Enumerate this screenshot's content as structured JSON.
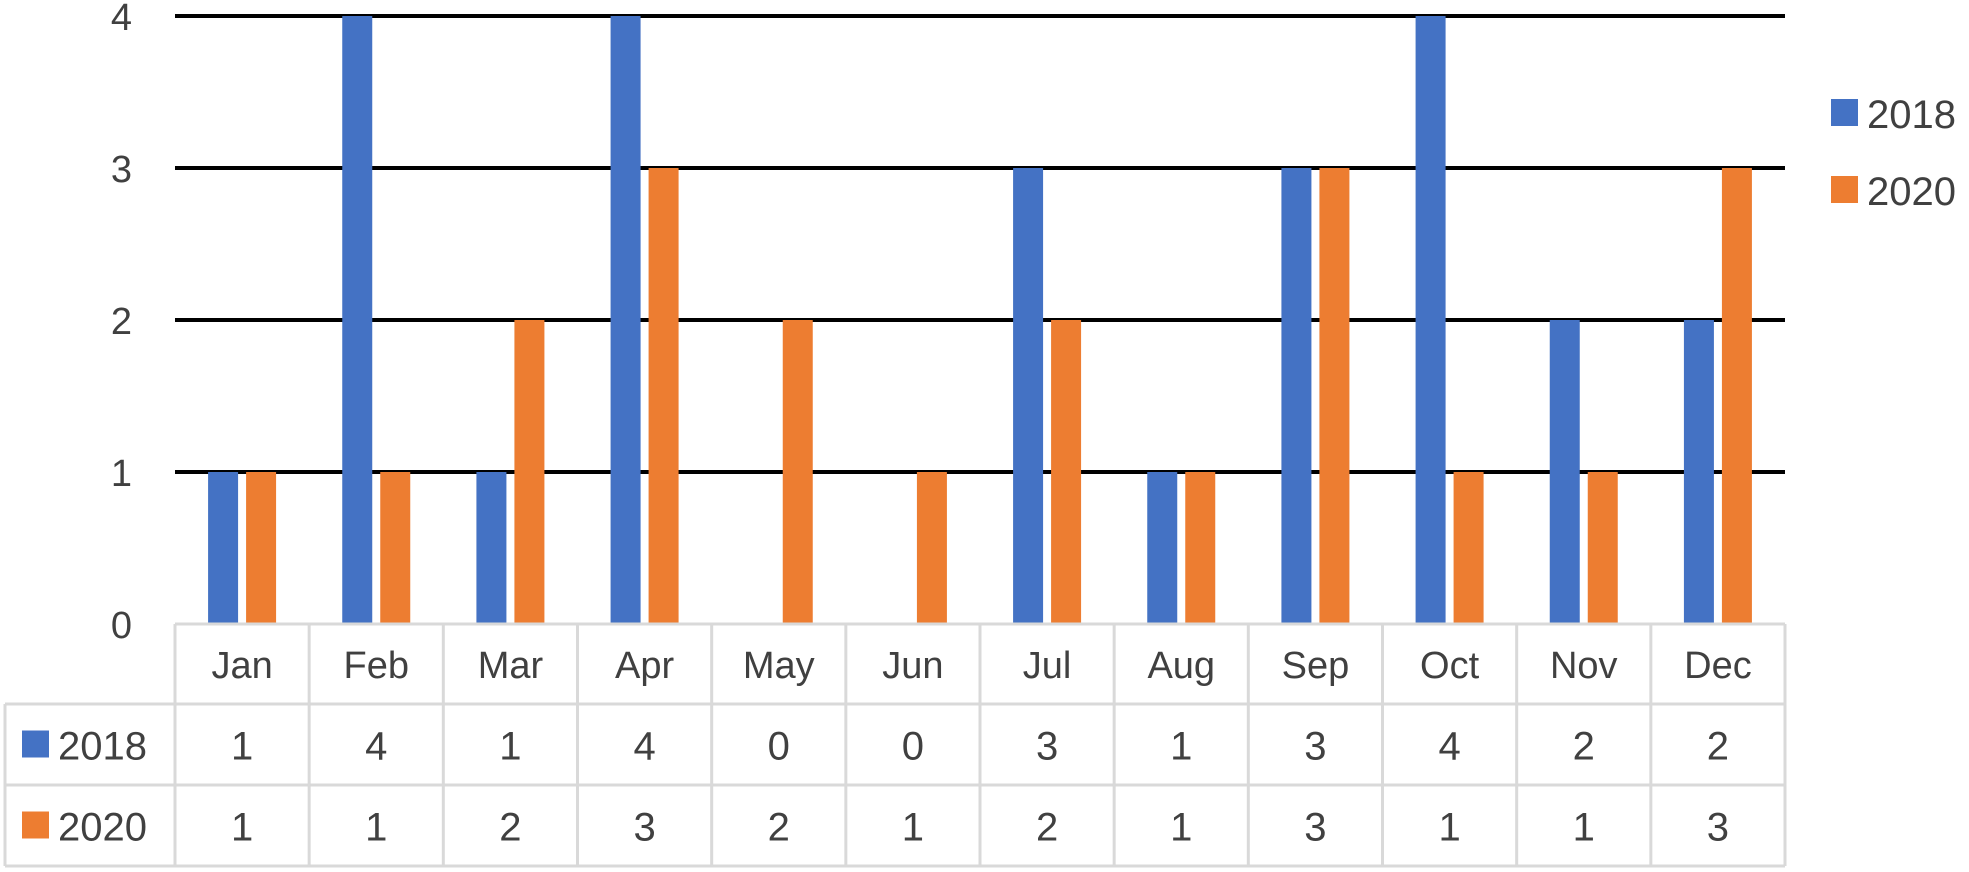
{
  "chart_data": {
    "type": "bar",
    "categories": [
      "Jan",
      "Feb",
      "Mar",
      "Apr",
      "May",
      "Jun",
      "Jul",
      "Aug",
      "Sep",
      "Oct",
      "Nov",
      "Dec"
    ],
    "series": [
      {
        "name": "2018",
        "color": "#4472c4",
        "values": [
          1,
          4,
          1,
          4,
          0,
          0,
          3,
          1,
          3,
          4,
          2,
          2
        ]
      },
      {
        "name": "2020",
        "color": "#ed7d31",
        "values": [
          1,
          1,
          2,
          3,
          2,
          1,
          2,
          1,
          3,
          1,
          1,
          3
        ]
      }
    ],
    "ylim": [
      0,
      4
    ],
    "yticks": [
      0,
      1,
      2,
      3,
      4
    ],
    "grid": true,
    "legend": "right",
    "data_table": true
  }
}
